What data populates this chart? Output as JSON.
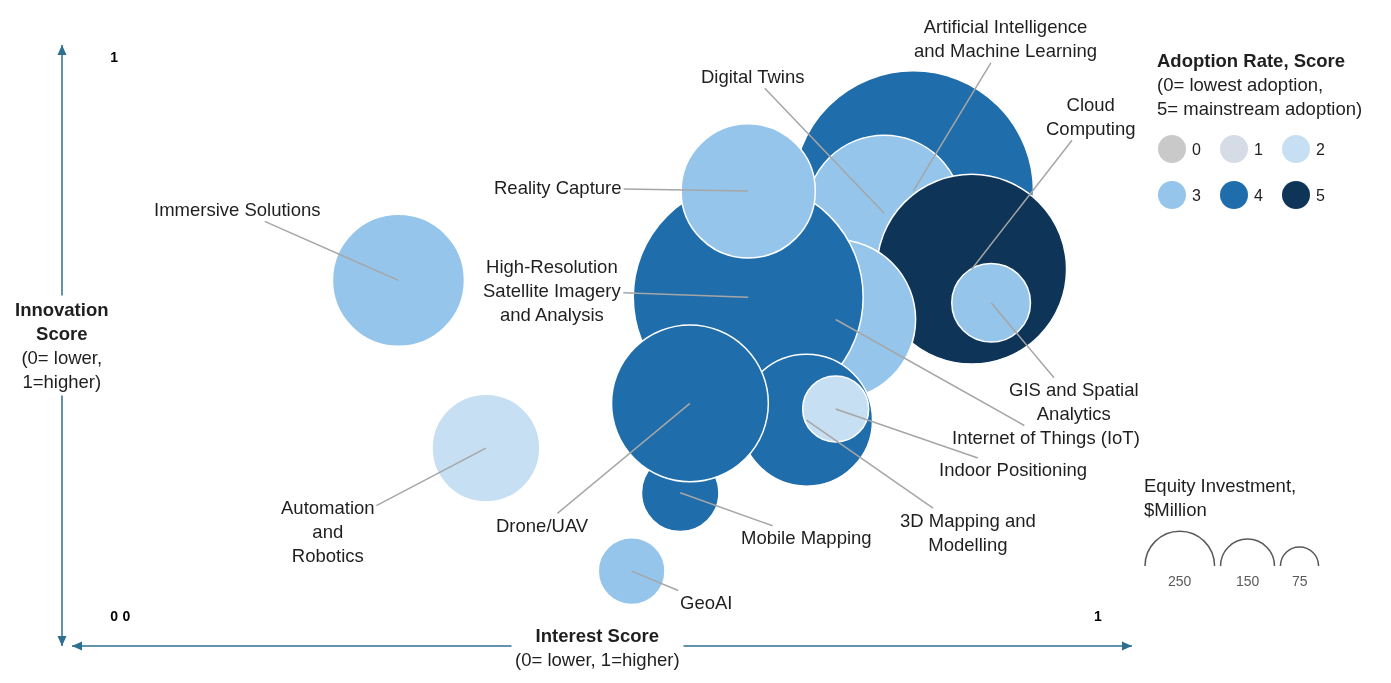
{
  "chart_data": {
    "type": "bubble",
    "xlabel": "Interest Score\n(0= lower, 1=higher)",
    "ylabel": "Innovation\nScore\n(0= lower,\n1=higher)",
    "legend_title": "Adoption Rate, Score\n(0= lowest adoption,\n5= mainstream adoption)",
    "xlim": [
      -0.056,
      1.035
    ],
    "ylim": [
      -0.054,
      1.021
    ],
    "xticks": [
      0,
      1
    ],
    "yticks": [
      0,
      1
    ],
    "marker": "circle",
    "legend": "top right",
    "size_legend": [
      {
        "value": 250,
        "label": "250"
      },
      {
        "value": 150,
        "label": "150"
      },
      {
        "value": 75,
        "label": "75"
      }
    ],
    "series": [
      {
        "name": "0",
        "color": "#c9c9c9"
      },
      {
        "name": "1",
        "color": "#d6dce5"
      },
      {
        "name": "2",
        "color": "#c6dff2",
        "x": [
          0.37,
          0.73
        ],
        "values": [
          0.3,
          0.37
        ],
        "sizes": [
          600,
          225
        ]
      },
      {
        "name": "3",
        "color": "#95c5eb",
        "x": [
          0.28,
          0.52,
          0.73,
          0.64,
          0.78,
          0.89
        ],
        "values": [
          0.6,
          0.08,
          0.53,
          0.76,
          0.72,
          0.56
        ],
        "sizes": [
          900,
          230,
          1320,
          930,
          1260,
          320
        ]
      },
      {
        "name": "4",
        "color": "#1f6dab",
        "x": [
          0.81,
          0.64,
          0.58,
          0.7,
          0.57
        ],
        "values": [
          0.76,
          0.57,
          0.38,
          0.35,
          0.22
        ],
        "sizes": [
          2980,
          2730,
          1270,
          900,
          310
        ]
      },
      {
        "name": "5",
        "color": "#0e3558",
        "x": [
          0.87
        ],
        "values": [
          0.62
        ],
        "sizes": [
          1860
        ]
      }
    ],
    "annotations": [
      {
        "text": "Immersive Solutions",
        "x": 0.28,
        "y": 0.6
      },
      {
        "text": "Automation\nand\nRobotics",
        "x": 0.37,
        "y": 0.3
      },
      {
        "text": "Drone/UAV",
        "x": 0.58,
        "y": 0.38
      },
      {
        "text": "GeoAI",
        "x": 0.52,
        "y": 0.08
      },
      {
        "text": "Mobile Mapping",
        "x": 0.57,
        "y": 0.22
      },
      {
        "text": "3D Mapping and\nModelling",
        "x": 0.7,
        "y": 0.35
      },
      {
        "text": "Indoor Positioning",
        "x": 0.73,
        "y": 0.37
      },
      {
        "text": "Internet of Things (IoT)",
        "x": 0.73,
        "y": 0.53
      },
      {
        "text": "GIS and Spatial\nAnalytics",
        "x": 0.89,
        "y": 0.56
      },
      {
        "text": "Cloud\nComputing",
        "x": 0.87,
        "y": 0.62
      },
      {
        "text": "Artificial Intelligence\nand Machine Learning",
        "x": 0.81,
        "y": 0.76
      },
      {
        "text": "Digital Twins",
        "x": 0.78,
        "y": 0.72
      },
      {
        "text": "Reality Capture",
        "x": 0.64,
        "y": 0.76
      },
      {
        "text": "High-Resolution\nSatellite Imagery\nand Analysis",
        "x": 0.64,
        "y": 0.57
      },
      "Equity Investment,\n$Million"
    ]
  }
}
